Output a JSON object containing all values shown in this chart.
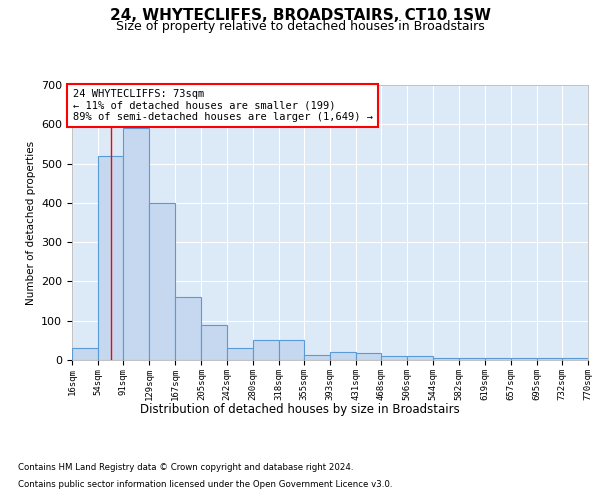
{
  "title": "24, WHYTECLIFFS, BROADSTAIRS, CT10 1SW",
  "subtitle": "Size of property relative to detached houses in Broadstairs",
  "xlabel": "Distribution of detached houses by size in Broadstairs",
  "ylabel": "Number of detached properties",
  "bar_color": "#c5d8f0",
  "bar_edge_color": "#5b9bd5",
  "background_color": "#dce9f7",
  "grid_color": "#ffffff",
  "annotation_text": "24 WHYTECLIFFS: 73sqm\n← 11% of detached houses are smaller (199)\n89% of semi-detached houses are larger (1,649) →",
  "property_line_x": 73,
  "bin_edges": [
    16,
    54,
    91,
    129,
    167,
    205,
    242,
    280,
    318,
    355,
    393,
    431,
    468,
    506,
    544,
    582,
    619,
    657,
    695,
    732,
    770
  ],
  "bin_labels": [
    "16sqm",
    "54sqm",
    "91sqm",
    "129sqm",
    "167sqm",
    "205sqm",
    "242sqm",
    "280sqm",
    "318sqm",
    "355sqm",
    "393sqm",
    "431sqm",
    "468sqm",
    "506sqm",
    "544sqm",
    "582sqm",
    "619sqm",
    "657sqm",
    "695sqm",
    "732sqm",
    "770sqm"
  ],
  "bar_heights": [
    30,
    520,
    590,
    400,
    160,
    90,
    30,
    50,
    50,
    12,
    20,
    18,
    10,
    10,
    5,
    5,
    5,
    5,
    5,
    5
  ],
  "ylim": [
    0,
    700
  ],
  "yticks": [
    0,
    100,
    200,
    300,
    400,
    500,
    600,
    700
  ],
  "footer_line1": "Contains HM Land Registry data © Crown copyright and database right 2024.",
  "footer_line2": "Contains public sector information licensed under the Open Government Licence v3.0."
}
